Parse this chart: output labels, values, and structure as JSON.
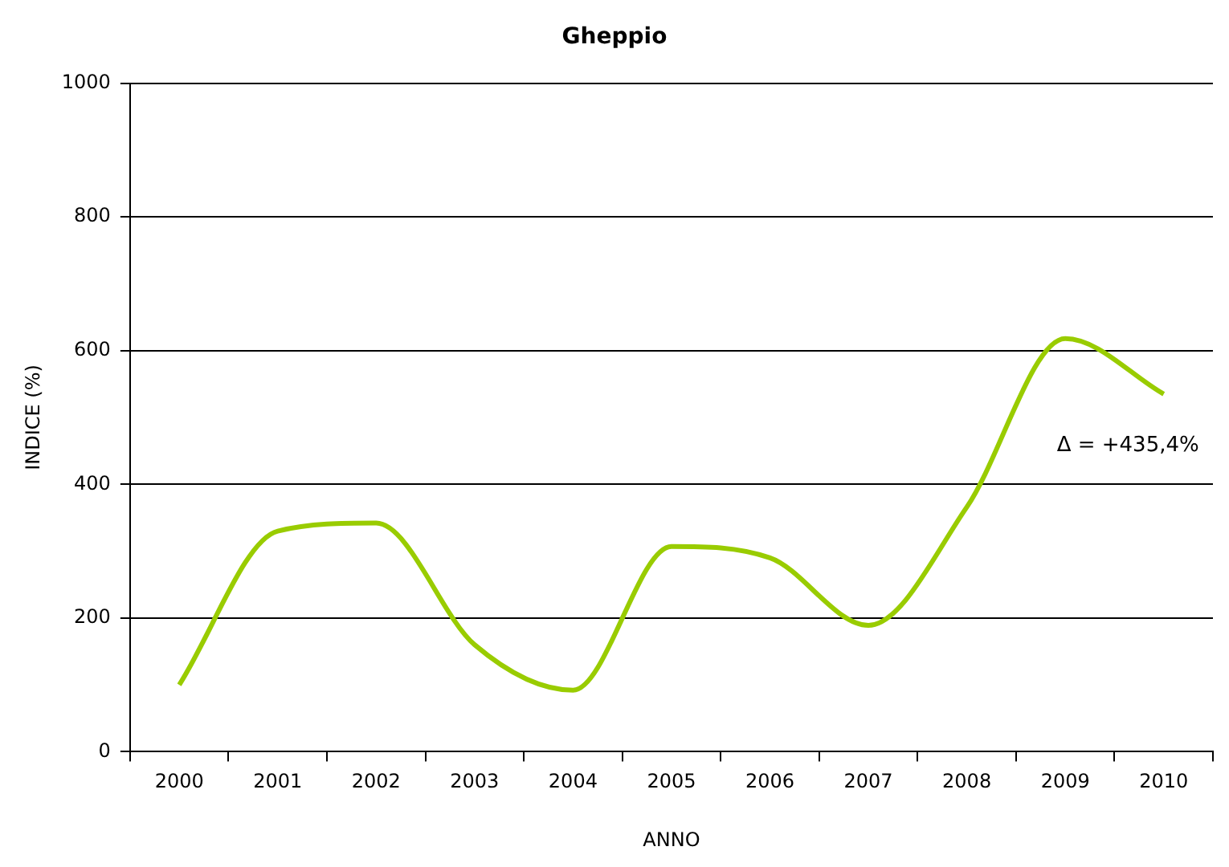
{
  "chart_data": {
    "type": "line",
    "title": "Gheppio",
    "xlabel": "ANNO",
    "ylabel": "INDICE (%)",
    "categories": [
      "2000",
      "2001",
      "2002",
      "2003",
      "2004",
      "2005",
      "2006",
      "2007",
      "2008",
      "2009",
      "2010"
    ],
    "series": [
      {
        "color": "#99cc00",
        "values": [
          100,
          330,
          342,
          160,
          92,
          307,
          290,
          189,
          366,
          618,
          535
        ]
      }
    ],
    "ylim": [
      0,
      1000
    ],
    "yticks": [
      0,
      200,
      400,
      600,
      800,
      1000
    ],
    "grid": "y",
    "legend": false,
    "marker": "none",
    "line_style": "solid",
    "annotations": [
      {
        "text": "Δ = +435,4%",
        "x": "2010",
        "y": 535
      }
    ]
  }
}
